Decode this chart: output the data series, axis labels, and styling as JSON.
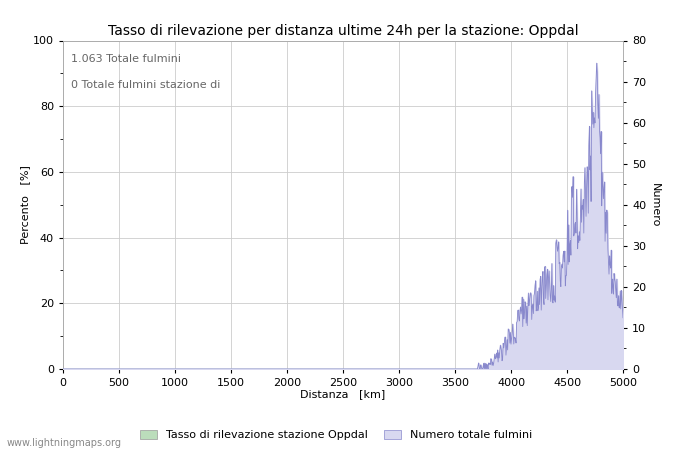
{
  "title": "Tasso di rilevazione per distanza ultime 24h per la stazione: Oppdal",
  "xlabel": "Distanza   [km]",
  "ylabel_left": "Percento   [%]",
  "ylabel_right": "Numero",
  "xlim": [
    0,
    5000
  ],
  "ylim_left": [
    0,
    100
  ],
  "ylim_right": [
    0,
    80
  ],
  "xticks": [
    0,
    500,
    1000,
    1500,
    2000,
    2500,
    3000,
    3500,
    4000,
    4500,
    5000
  ],
  "yticks_left": [
    0,
    20,
    40,
    60,
    80,
    100
  ],
  "yticks_right": [
    0,
    10,
    20,
    30,
    40,
    50,
    60,
    70,
    80
  ],
  "annotation_line1": "1.063 Totale fulmini",
  "annotation_line2": "0 Totale fulmini stazione di",
  "legend_green": "Tasso di rilevazione stazione Oppdal",
  "legend_blue": "Numero totale fulmini",
  "watermark": "www.lightningmaps.org",
  "line_color": "#8888cc",
  "fill_color": "#d8d8f0",
  "green_color": "#bbddbb",
  "bg_color": "#ffffff",
  "grid_color": "#cccccc",
  "title_fontsize": 10,
  "axis_fontsize": 8,
  "tick_fontsize": 8,
  "annotation_fontsize": 8
}
